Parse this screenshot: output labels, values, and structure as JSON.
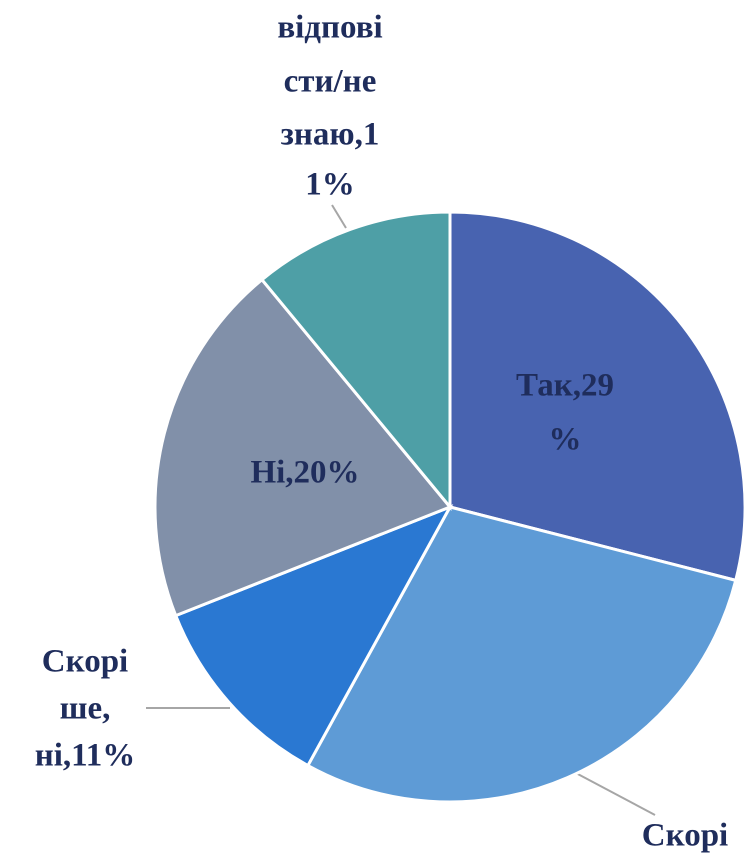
{
  "chart_data": {
    "type": "pie",
    "values": [
      29,
      29,
      11,
      20,
      11
    ],
    "colors": [
      "#4863b0",
      "#5e9bd6",
      "#2a78d2",
      "#8190a9",
      "#4e9fa6"
    ],
    "labels": [
      [
        "Так,29",
        "%"
      ],
      [
        "Скорі"
      ],
      [
        "Скорі",
        "ше,",
        "ні,11%"
      ],
      [
        "Ні,20%"
      ],
      [
        "відпові",
        "сти/не",
        "знаю,1",
        "1%"
      ]
    ]
  }
}
